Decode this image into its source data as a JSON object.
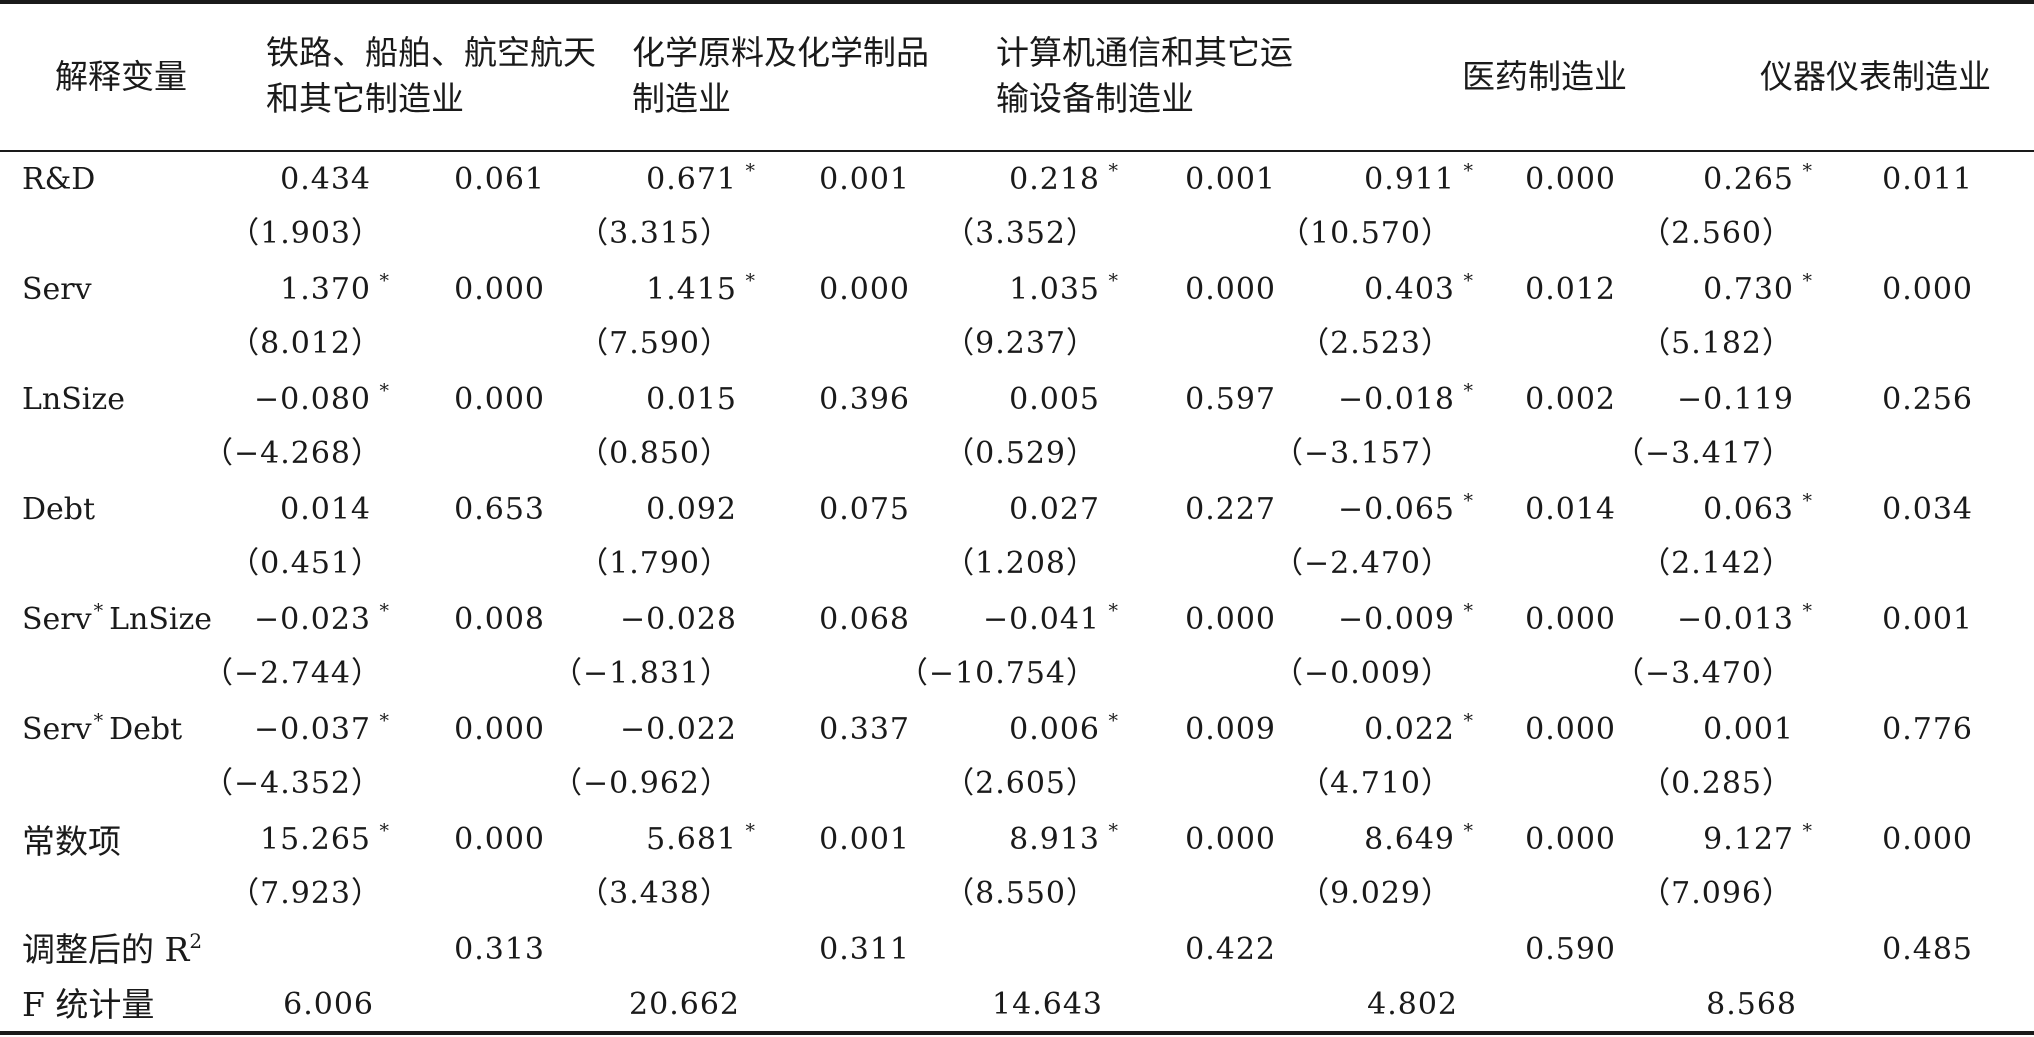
{
  "table": {
    "headers": {
      "variable": "解释变量",
      "industry1_line1": "铁路、船舶、航空航天",
      "industry1_line2": "和其它制造业",
      "industry2_line1": "化学原料及化学制品",
      "industry2_line2": "制造业",
      "industry3_line1": "计算机通信和其它运",
      "industry3_line2": "输设备制造业",
      "industry4": "医药制造业",
      "industry5": "仪器仪表制造业"
    },
    "star": "*",
    "rows": [
      {
        "label": "R&D",
        "coef": [
          "0.434",
          "0.671",
          "0.218",
          "0.911",
          "0.265"
        ],
        "coef_star": [
          false,
          true,
          true,
          true,
          true
        ],
        "p": [
          "0.061",
          "0.001",
          "0.001",
          "0.000",
          "0.011"
        ],
        "t": [
          "（1.903）",
          "（3.315）",
          "（3.352）",
          "（10.570）",
          "（2.560）"
        ]
      },
      {
        "label": "Serv",
        "coef": [
          "1.370",
          "1.415",
          "1.035",
          "0.403",
          "0.730"
        ],
        "coef_star": [
          true,
          true,
          true,
          true,
          true
        ],
        "p": [
          "0.000",
          "0.000",
          "0.000",
          "0.012",
          "0.000"
        ],
        "t": [
          "（8.012）",
          "（7.590）",
          "（9.237）",
          "（2.523）",
          "（5.182）"
        ]
      },
      {
        "label": "LnSize",
        "coef": [
          "−0.080",
          "0.015",
          "0.005",
          "−0.018",
          "−0.119"
        ],
        "coef_star": [
          true,
          false,
          false,
          true,
          false
        ],
        "p": [
          "0.000",
          "0.396",
          "0.597",
          "0.002",
          "0.256"
        ],
        "t": [
          "（−4.268）",
          "（0.850）",
          "（0.529）",
          "（−3.157）",
          "（−3.417）"
        ]
      },
      {
        "label": "Debt",
        "coef": [
          "0.014",
          "0.092",
          "0.027",
          "−0.065",
          "0.063"
        ],
        "coef_star": [
          false,
          false,
          false,
          true,
          true
        ],
        "p": [
          "0.653",
          "0.075",
          "0.227",
          "0.014",
          "0.034"
        ],
        "t": [
          "（0.451）",
          "（1.790）",
          "（1.208）",
          "（−2.470）",
          "（2.142）"
        ]
      },
      {
        "label_a": "Serv",
        "label_b": "LnSize",
        "coef": [
          "−0.023",
          "−0.028",
          "−0.041",
          "−0.009",
          "−0.013"
        ],
        "coef_star": [
          true,
          false,
          true,
          true,
          true
        ],
        "p": [
          "0.008",
          "0.068",
          "0.000",
          "0.000",
          "0.001"
        ],
        "t": [
          "（−2.744）",
          "（−1.831）",
          "（−10.754）",
          "（−0.009）",
          "（−3.470）"
        ]
      },
      {
        "label_a": "Serv",
        "label_b": "Debt",
        "coef": [
          "−0.037",
          "−0.022",
          "0.006",
          "0.022",
          "0.001"
        ],
        "coef_star": [
          true,
          false,
          true,
          true,
          false
        ],
        "p": [
          "0.000",
          "0.337",
          "0.009",
          "0.000",
          "0.776"
        ],
        "t": [
          "（−4.352）",
          "（−0.962）",
          "（2.605）",
          "（4.710）",
          "（0.285）"
        ]
      },
      {
        "label": "常数项",
        "coef": [
          "15.265",
          "5.681",
          "8.913",
          "8.649",
          "9.127"
        ],
        "coef_star": [
          true,
          true,
          true,
          true,
          true
        ],
        "p": [
          "0.000",
          "0.001",
          "0.000",
          "0.000",
          "0.000"
        ],
        "t": [
          "（7.923）",
          "（3.438）",
          "（8.550）",
          "（9.029）",
          "（7.096）"
        ]
      }
    ],
    "r2": {
      "label": "调整后的 R",
      "label_sup": "2",
      "values": [
        "0.313",
        "0.311",
        "0.422",
        "0.590",
        "0.485"
      ]
    },
    "f": {
      "label": "F 统计量",
      "values": [
        "6.006",
        "20.662",
        "14.643",
        "4.802",
        "8.568"
      ]
    }
  }
}
